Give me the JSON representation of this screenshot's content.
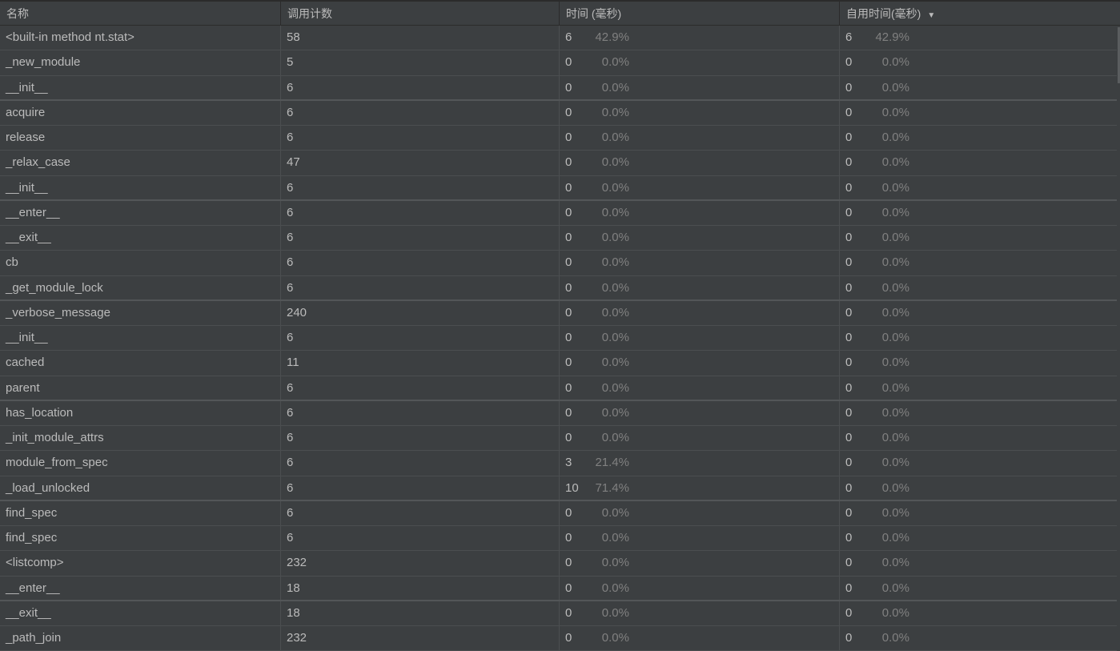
{
  "header": {
    "columns": [
      "名称",
      "调用计数",
      "时间 (毫秒)",
      "自用时间(毫秒)"
    ],
    "sort_icon": "triangle-down-icon"
  },
  "rows": [
    {
      "name": "<built-in method nt.stat>",
      "calls": "58",
      "time": "6",
      "time_pct": "42.9%",
      "own": "6",
      "own_pct": "42.9%"
    },
    {
      "name": "_new_module",
      "calls": "5",
      "time": "0",
      "time_pct": "0.0%",
      "own": "0",
      "own_pct": "0.0%"
    },
    {
      "name": "__init__",
      "calls": "6",
      "time": "0",
      "time_pct": "0.0%",
      "own": "0",
      "own_pct": "0.0%"
    },
    {
      "name": "acquire",
      "calls": "6",
      "time": "0",
      "time_pct": "0.0%",
      "own": "0",
      "own_pct": "0.0%"
    },
    {
      "name": "release",
      "calls": "6",
      "time": "0",
      "time_pct": "0.0%",
      "own": "0",
      "own_pct": "0.0%"
    },
    {
      "name": "_relax_case",
      "calls": "47",
      "time": "0",
      "time_pct": "0.0%",
      "own": "0",
      "own_pct": "0.0%"
    },
    {
      "name": "__init__",
      "calls": "6",
      "time": "0",
      "time_pct": "0.0%",
      "own": "0",
      "own_pct": "0.0%"
    },
    {
      "name": "__enter__",
      "calls": "6",
      "time": "0",
      "time_pct": "0.0%",
      "own": "0",
      "own_pct": "0.0%"
    },
    {
      "name": "__exit__",
      "calls": "6",
      "time": "0",
      "time_pct": "0.0%",
      "own": "0",
      "own_pct": "0.0%"
    },
    {
      "name": "cb",
      "calls": "6",
      "time": "0",
      "time_pct": "0.0%",
      "own": "0",
      "own_pct": "0.0%"
    },
    {
      "name": "_get_module_lock",
      "calls": "6",
      "time": "0",
      "time_pct": "0.0%",
      "own": "0",
      "own_pct": "0.0%"
    },
    {
      "name": "_verbose_message",
      "calls": "240",
      "time": "0",
      "time_pct": "0.0%",
      "own": "0",
      "own_pct": "0.0%"
    },
    {
      "name": "__init__",
      "calls": "6",
      "time": "0",
      "time_pct": "0.0%",
      "own": "0",
      "own_pct": "0.0%"
    },
    {
      "name": "cached",
      "calls": "11",
      "time": "0",
      "time_pct": "0.0%",
      "own": "0",
      "own_pct": "0.0%"
    },
    {
      "name": "parent",
      "calls": "6",
      "time": "0",
      "time_pct": "0.0%",
      "own": "0",
      "own_pct": "0.0%"
    },
    {
      "name": "has_location",
      "calls": "6",
      "time": "0",
      "time_pct": "0.0%",
      "own": "0",
      "own_pct": "0.0%"
    },
    {
      "name": "_init_module_attrs",
      "calls": "6",
      "time": "0",
      "time_pct": "0.0%",
      "own": "0",
      "own_pct": "0.0%"
    },
    {
      "name": "module_from_spec",
      "calls": "6",
      "time": "3",
      "time_pct": "21.4%",
      "own": "0",
      "own_pct": "0.0%"
    },
    {
      "name": "_load_unlocked",
      "calls": "6",
      "time": "10",
      "time_pct": "71.4%",
      "own": "0",
      "own_pct": "0.0%"
    },
    {
      "name": "find_spec",
      "calls": "6",
      "time": "0",
      "time_pct": "0.0%",
      "own": "0",
      "own_pct": "0.0%"
    },
    {
      "name": "find_spec",
      "calls": "6",
      "time": "0",
      "time_pct": "0.0%",
      "own": "0",
      "own_pct": "0.0%"
    },
    {
      "name": "<listcomp>",
      "calls": "232",
      "time": "0",
      "time_pct": "0.0%",
      "own": "0",
      "own_pct": "0.0%"
    },
    {
      "name": "__enter__",
      "calls": "18",
      "time": "0",
      "time_pct": "0.0%",
      "own": "0",
      "own_pct": "0.0%"
    },
    {
      "name": "__exit__",
      "calls": "18",
      "time": "0",
      "time_pct": "0.0%",
      "own": "0",
      "own_pct": "0.0%"
    },
    {
      "name": "_path_join",
      "calls": "232",
      "time": "0",
      "time_pct": "0.0%",
      "own": "0",
      "own_pct": "0.0%"
    }
  ]
}
